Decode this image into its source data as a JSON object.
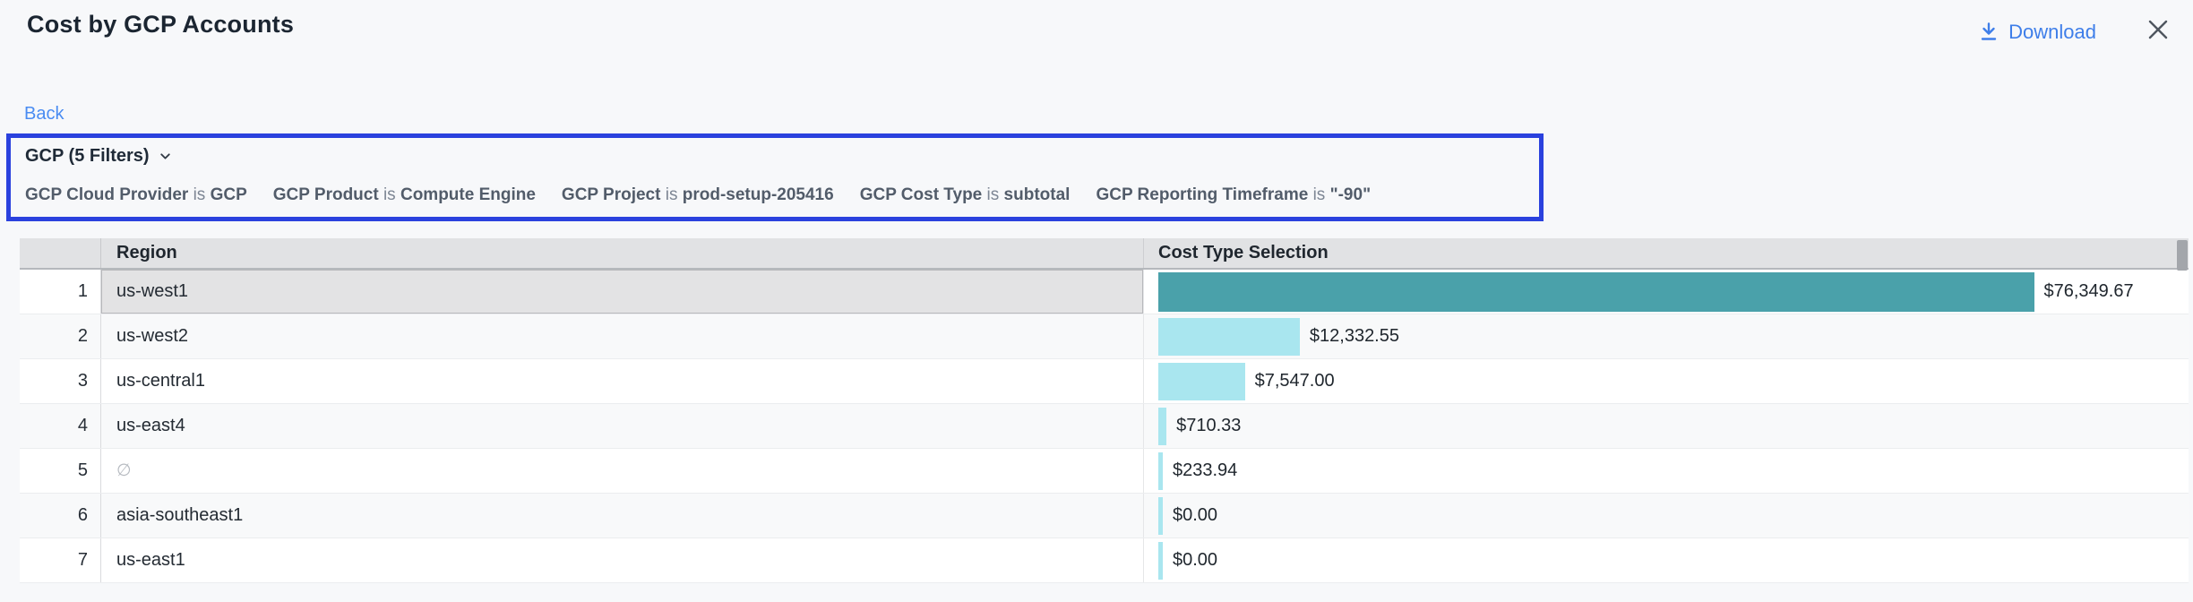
{
  "header": {
    "title": "Cost by GCP Accounts",
    "download_label": "Download"
  },
  "nav": {
    "back_label": "Back"
  },
  "filters": {
    "summary_label": "GCP (5 Filters)",
    "items": [
      {
        "field": "GCP Cloud Provider",
        "op": "is",
        "value": "GCP"
      },
      {
        "field": "GCP Product",
        "op": "is",
        "value": "Compute Engine"
      },
      {
        "field": "GCP Project",
        "op": "is",
        "value": "prod-setup-205416"
      },
      {
        "field": "GCP Cost Type",
        "op": "is",
        "value": "subtotal"
      },
      {
        "field": "GCP Reporting Timeframe",
        "op": "is",
        "value": "\"-90\""
      }
    ]
  },
  "table": {
    "columns": [
      "Region",
      "Cost Type Selection"
    ],
    "max_value": 76349.67,
    "rows": [
      {
        "index": "1",
        "region": "us-west1",
        "value": 76349.67,
        "label": "$76,349.67",
        "selected": true,
        "null_region": false
      },
      {
        "index": "2",
        "region": "us-west2",
        "value": 12332.55,
        "label": "$12,332.55",
        "selected": false,
        "null_region": false
      },
      {
        "index": "3",
        "region": "us-central1",
        "value": 7547.0,
        "label": "$7,547.00",
        "selected": false,
        "null_region": false
      },
      {
        "index": "4",
        "region": "us-east4",
        "value": 710.33,
        "label": "$710.33",
        "selected": false,
        "null_region": false
      },
      {
        "index": "5",
        "region": "∅",
        "value": 233.94,
        "label": "$233.94",
        "selected": false,
        "null_region": true
      },
      {
        "index": "6",
        "region": "asia-southeast1",
        "value": 0,
        "label": "$0.00",
        "selected": false,
        "null_region": false
      },
      {
        "index": "7",
        "region": "us-east1",
        "value": 0,
        "label": "$0.00",
        "selected": false,
        "null_region": false
      }
    ]
  },
  "colors": {
    "accent_blue": "#3e7ee9",
    "filter_border_blue": "#2a41de",
    "bar_selected_teal": "#4aa1aa",
    "bar_cyan": "#a9e6ef",
    "header_bg": "#e1e2e4",
    "page_bg": "#f7f8fa"
  }
}
